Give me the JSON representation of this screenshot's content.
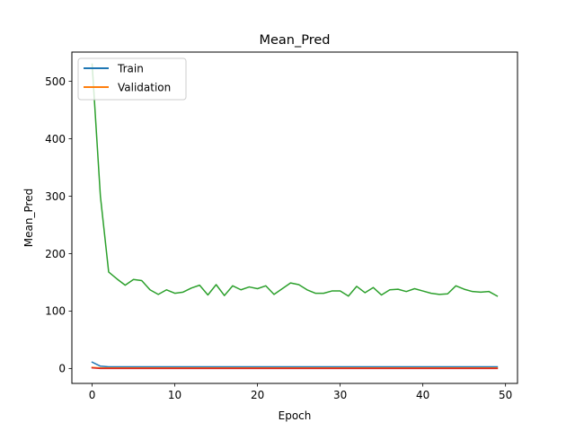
{
  "chart_data": {
    "type": "line",
    "title": "Mean_Pred",
    "xlabel": "Epoch",
    "ylabel": "Mean_Pred",
    "xlim": [
      -2.45,
      51.45
    ],
    "ylim": [
      -26,
      551
    ],
    "x_ticks": [
      0,
      10,
      20,
      30,
      40,
      50
    ],
    "y_ticks": [
      0,
      100,
      200,
      300,
      400,
      500
    ],
    "grid": false,
    "legend_position": "upper left",
    "legend": [
      "Train",
      "Validation"
    ],
    "series": [
      {
        "name": "Train",
        "color": "#1f77b4",
        "x": [
          0,
          1,
          2,
          3,
          4,
          5,
          6,
          7,
          8,
          9,
          10,
          11,
          12,
          13,
          14,
          15,
          16,
          17,
          18,
          19,
          20,
          21,
          22,
          23,
          24,
          25,
          26,
          27,
          28,
          29,
          30,
          31,
          32,
          33,
          34,
          35,
          36,
          37,
          38,
          39,
          40,
          41,
          42,
          43,
          44,
          45,
          46,
          47,
          48,
          49
        ],
        "y": [
          11,
          4,
          3,
          3,
          3,
          3,
          3,
          3,
          3,
          3,
          3,
          3,
          3,
          3,
          3,
          3,
          3,
          3,
          3,
          3,
          3,
          3,
          3,
          3,
          3,
          3,
          3,
          3,
          3,
          3,
          3,
          3,
          3,
          3,
          3,
          3,
          3,
          3,
          3,
          3,
          3,
          3,
          3,
          3,
          3,
          3,
          3,
          3,
          3,
          3
        ]
      },
      {
        "name": "Validation",
        "color": "#ff7f0e",
        "x": [
          0,
          1,
          2,
          3,
          4,
          5,
          6,
          7,
          8,
          9,
          10,
          11,
          12,
          13,
          14,
          15,
          16,
          17,
          18,
          19,
          20,
          21,
          22,
          23,
          24,
          25,
          26,
          27,
          28,
          29,
          30,
          31,
          32,
          33,
          34,
          35,
          36,
          37,
          38,
          39,
          40,
          41,
          42,
          43,
          44,
          45,
          46,
          47,
          48,
          49
        ],
        "y": [
          2,
          1,
          1,
          1,
          1,
          1,
          1,
          1,
          1,
          1,
          1,
          1,
          1,
          1,
          1,
          1,
          1,
          1,
          1,
          1,
          1,
          1,
          1,
          1,
          1,
          1,
          1,
          1,
          1,
          1,
          1,
          1,
          1,
          1,
          1,
          1,
          1,
          1,
          1,
          1,
          1,
          1,
          1,
          1,
          1,
          1,
          1,
          1,
          1,
          1
        ]
      },
      {
        "color": "#2ca02c",
        "x": [
          0,
          1,
          2,
          3,
          4,
          5,
          6,
          7,
          8,
          9,
          10,
          11,
          12,
          13,
          14,
          15,
          16,
          17,
          18,
          19,
          20,
          21,
          22,
          23,
          24,
          25,
          26,
          27,
          28,
          29,
          30,
          31,
          32,
          33,
          34,
          35,
          36,
          37,
          38,
          39,
          40,
          41,
          42,
          43,
          44,
          45,
          46,
          47,
          48,
          49
        ],
        "y": [
          530,
          300,
          168,
          156,
          145,
          155,
          153,
          137,
          129,
          137,
          131,
          133,
          140,
          145,
          128,
          146,
          127,
          144,
          137,
          142,
          139,
          144,
          129,
          139,
          149,
          146,
          137,
          131,
          131,
          135,
          135,
          126,
          143,
          132,
          141,
          128,
          137,
          138,
          134,
          139,
          135,
          131,
          129,
          130,
          144,
          138,
          134,
          133,
          134,
          126
        ]
      },
      {
        "color": "#d62728",
        "x": [
          0,
          1,
          2,
          3,
          4,
          5,
          6,
          7,
          8,
          9,
          10,
          11,
          12,
          13,
          14,
          15,
          16,
          17,
          18,
          19,
          20,
          21,
          22,
          23,
          24,
          25,
          26,
          27,
          28,
          29,
          30,
          31,
          32,
          33,
          34,
          35,
          36,
          37,
          38,
          39,
          40,
          41,
          42,
          43,
          44,
          45,
          46,
          47,
          48,
          49
        ],
        "y": [
          1,
          0,
          0,
          0,
          0,
          0,
          0,
          0,
          0,
          0,
          0,
          0,
          0,
          0,
          0,
          0,
          0,
          0,
          0,
          0,
          0,
          0,
          0,
          0,
          0,
          0,
          0,
          0,
          0,
          0,
          0,
          0,
          0,
          0,
          0,
          0,
          0,
          0,
          0,
          0,
          0,
          0,
          0,
          0,
          0,
          0,
          0,
          0,
          0,
          0
        ]
      }
    ]
  }
}
